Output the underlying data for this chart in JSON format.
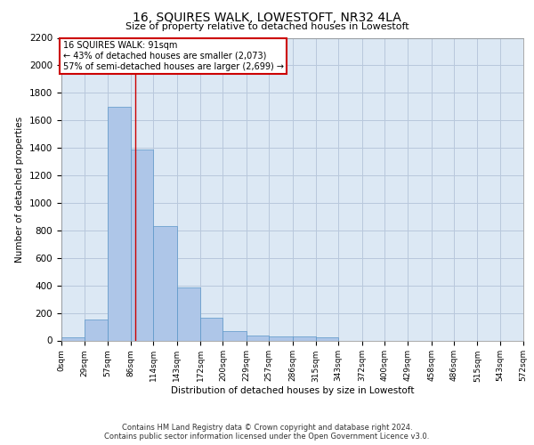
{
  "title": "16, SQUIRES WALK, LOWESTOFT, NR32 4LA",
  "subtitle": "Size of property relative to detached houses in Lowestoft",
  "xlabel": "Distribution of detached houses by size in Lowestoft",
  "ylabel": "Number of detached properties",
  "bar_values": [
    20,
    155,
    1700,
    1390,
    830,
    385,
    165,
    65,
    35,
    30,
    28,
    20,
    0,
    0,
    0,
    0,
    0,
    0,
    0,
    0
  ],
  "bin_edges": [
    0,
    29,
    57,
    86,
    114,
    143,
    172,
    200,
    229,
    257,
    286,
    315,
    343,
    372,
    400,
    429,
    458,
    486,
    515,
    543,
    572
  ],
  "tick_labels": [
    "0sqm",
    "29sqm",
    "57sqm",
    "86sqm",
    "114sqm",
    "143sqm",
    "172sqm",
    "200sqm",
    "229sqm",
    "257sqm",
    "286sqm",
    "315sqm",
    "343sqm",
    "372sqm",
    "400sqm",
    "429sqm",
    "458sqm",
    "486sqm",
    "515sqm",
    "543sqm",
    "572sqm"
  ],
  "bar_color": "#aec6e8",
  "bar_edge_color": "#5a96c8",
  "grid_color": "#b8c8dc",
  "bg_color": "#dce8f4",
  "property_line_x": 91,
  "annotation_line1": "16 SQUIRES WALK: 91sqm",
  "annotation_line2": "← 43% of detached houses are smaller (2,073)",
  "annotation_line3": "57% of semi-detached houses are larger (2,699) →",
  "annotation_box_color": "#ffffff",
  "annotation_box_edge": "#cc0000",
  "vline_color": "#cc0000",
  "footer_line1": "Contains HM Land Registry data © Crown copyright and database right 2024.",
  "footer_line2": "Contains public sector information licensed under the Open Government Licence v3.0.",
  "ylim": [
    0,
    2200
  ],
  "yticks": [
    0,
    200,
    400,
    600,
    800,
    1000,
    1200,
    1400,
    1600,
    1800,
    2000,
    2200
  ]
}
